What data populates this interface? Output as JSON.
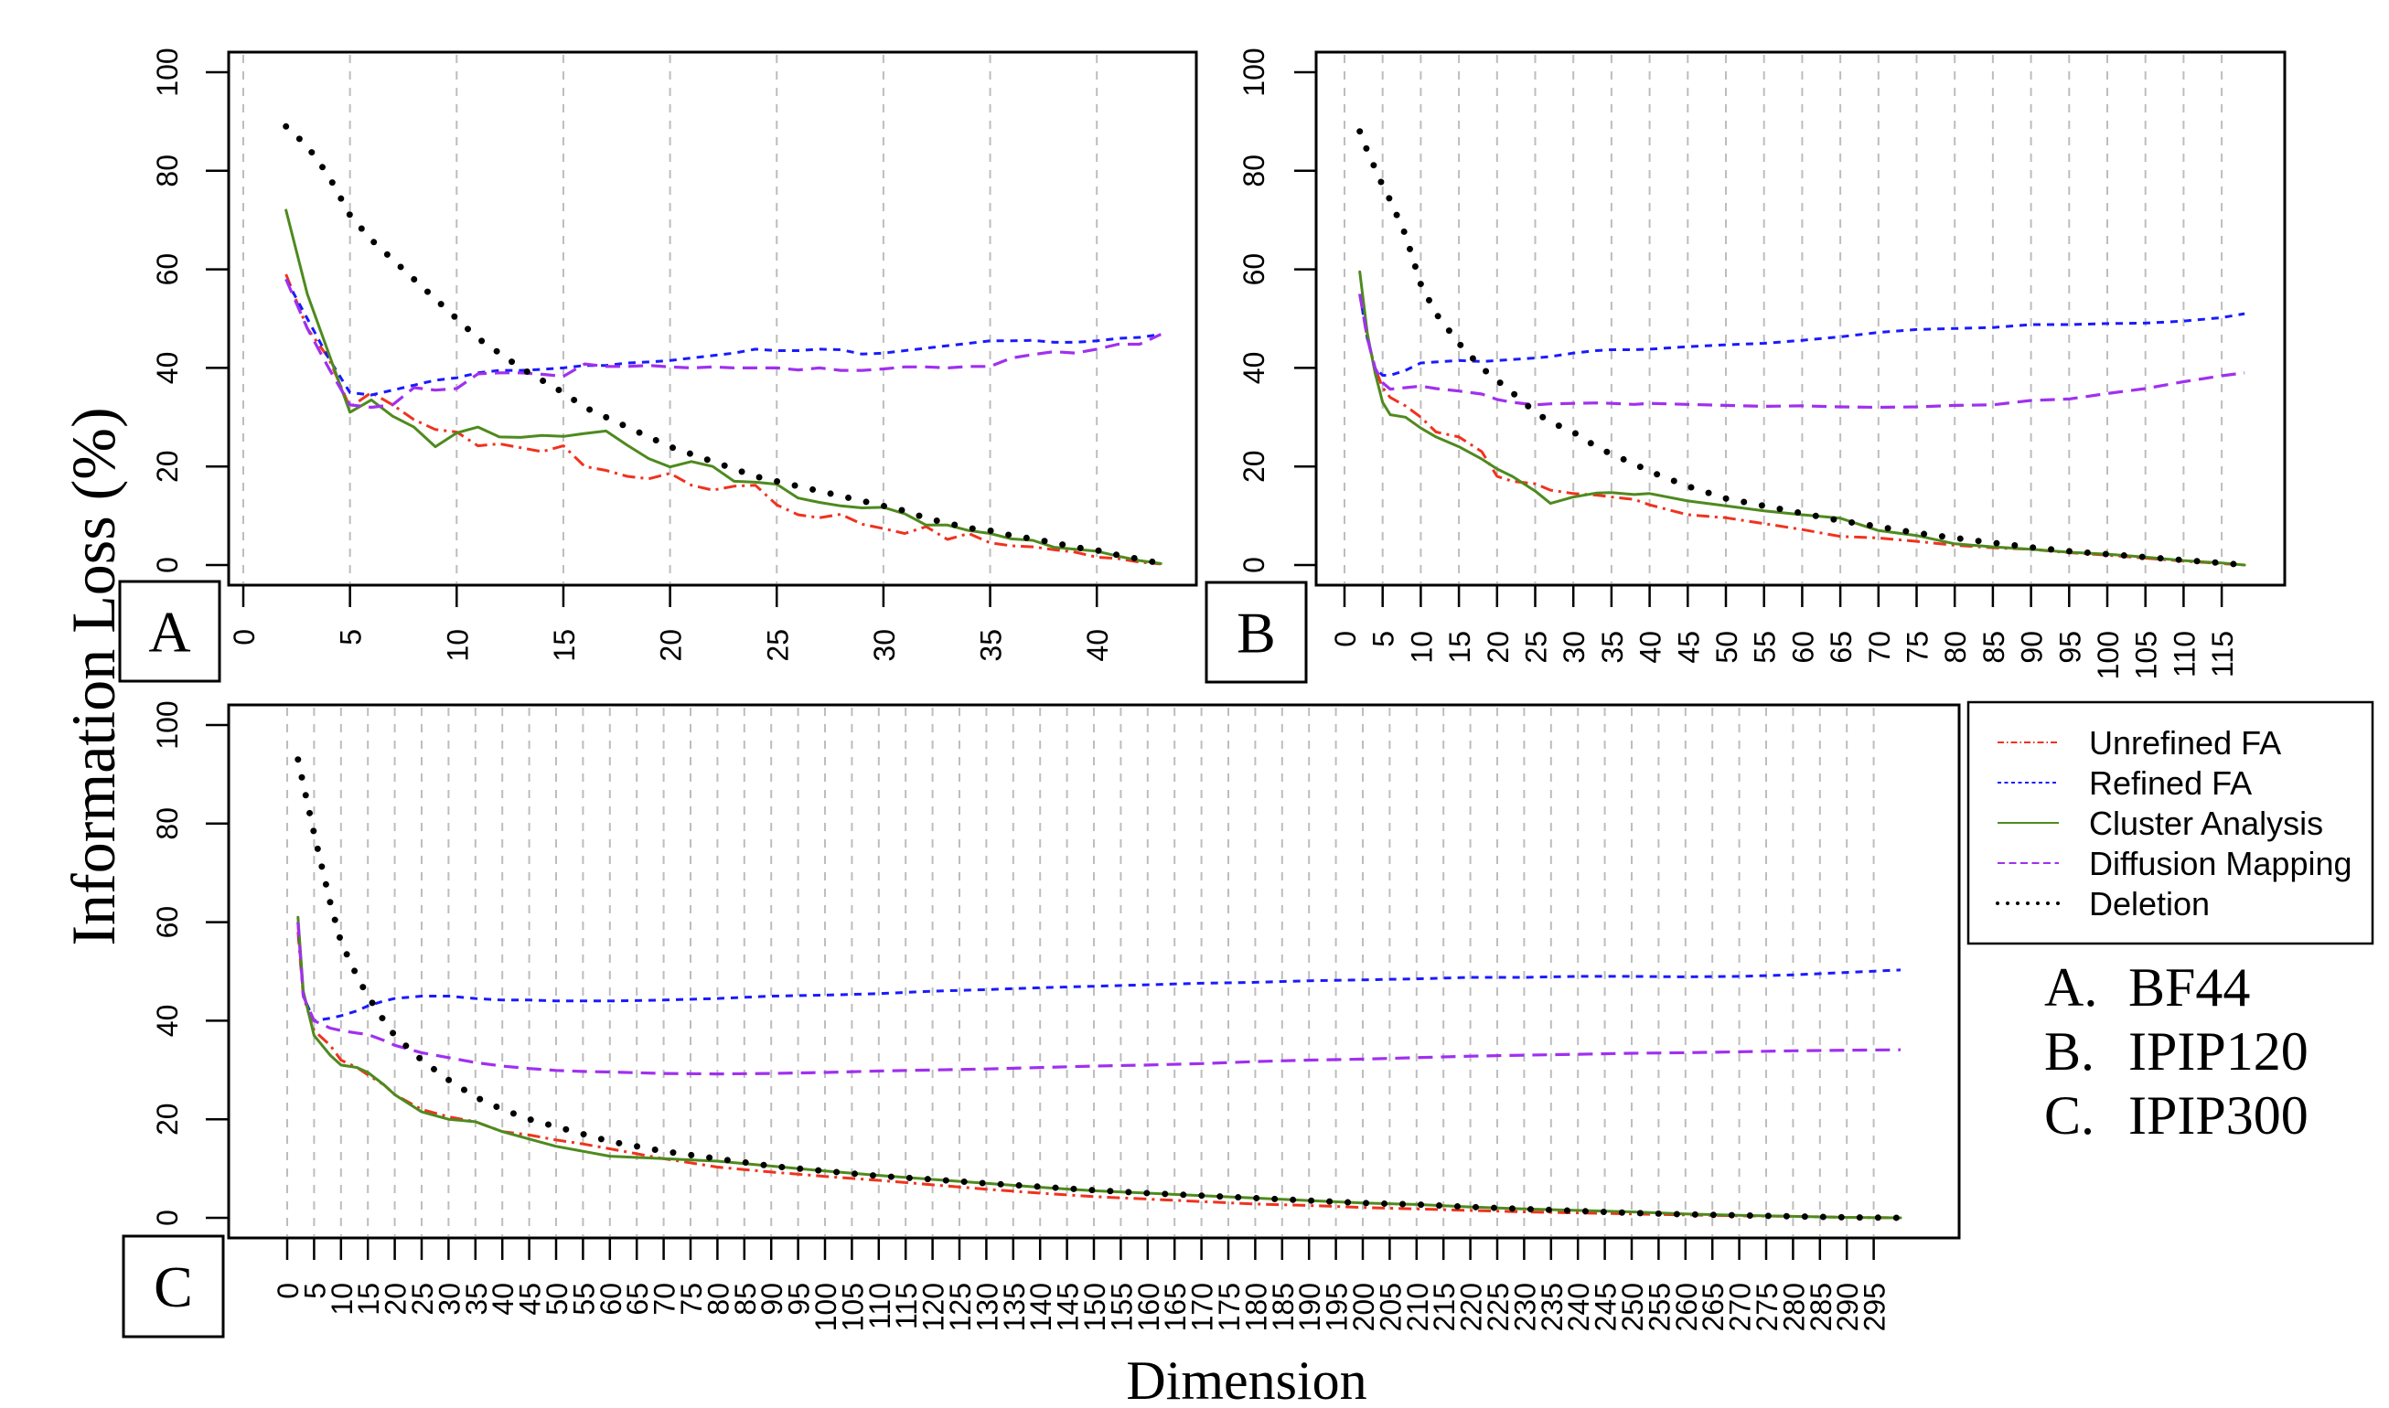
{
  "figure": {
    "ylabel": "Information Loss (%)",
    "xlabel": "Dimension",
    "legend": [
      {
        "name": "Unrefined FA",
        "color": "#f0321e",
        "style": "dot-dash"
      },
      {
        "name": "Refined FA",
        "color": "#1a1aff",
        "style": "short-dash"
      },
      {
        "name": "Cluster Analysis",
        "color": "#4e8a1e",
        "style": "solid"
      },
      {
        "name": "Diffusion Mapping",
        "color": "#a030f0",
        "style": "long-dash"
      },
      {
        "name": "Deletion",
        "color": "#000000",
        "style": "dotted"
      }
    ],
    "datasets": [
      {
        "letter": "A.",
        "name": "BF44"
      },
      {
        "letter": "B.",
        "name": "IPIP120"
      },
      {
        "letter": "C.",
        "name": "IPIP300"
      }
    ]
  },
  "chart_data": [
    {
      "type": "line",
      "panel": "A",
      "dataset": "BF44",
      "xlabel": "Dimension",
      "ylabel": "Information Loss (%)",
      "xlim": [
        0,
        43
      ],
      "ylim": [
        0,
        100
      ],
      "xticks": [
        0,
        5,
        10,
        15,
        20,
        25,
        30,
        35,
        40
      ],
      "yticks": [
        0,
        20,
        40,
        60,
        80,
        100
      ],
      "grid": "vertical dashed",
      "x": [
        2,
        3,
        4,
        5,
        6,
        7,
        8,
        9,
        10,
        11,
        12,
        13,
        14,
        15,
        16,
        17,
        18,
        19,
        20,
        21,
        22,
        23,
        24,
        25,
        26,
        27,
        28,
        29,
        30,
        31,
        32,
        33,
        34,
        35,
        36,
        37,
        38,
        39,
        40,
        41,
        42,
        43
      ],
      "series": [
        {
          "name": "Unrefined FA",
          "values": [
            59,
            48,
            42,
            32,
            35,
            32.5,
            29.5,
            27.5,
            27,
            24.2,
            24.6,
            23.8,
            23,
            24.2,
            20,
            19.2,
            18,
            17.5,
            18.6,
            16.2,
            15.2,
            16,
            16.2,
            12.2,
            10.2,
            9.6,
            10.3,
            8.3,
            7.4,
            6.4,
            7.8,
            5.2,
            6.4,
            4.5,
            3.9,
            3.7,
            3.1,
            2.6,
            1.6,
            1.3,
            0.6,
            0.2
          ]
        },
        {
          "name": "Refined FA",
          "values": [
            58,
            50,
            42,
            35,
            34.5,
            35.5,
            36.5,
            37.5,
            38,
            39,
            39.5,
            39.5,
            39.7,
            40,
            40.5,
            40.5,
            41,
            41.2,
            41.5,
            42,
            42.5,
            43,
            43.8,
            43.5,
            43.5,
            43.8,
            43.7,
            42.8,
            43,
            43.5,
            44,
            44.5,
            45,
            45.5,
            45.5,
            45.6,
            45.2,
            45.2,
            45.5,
            46,
            46.2,
            46.8
          ]
        },
        {
          "name": "Cluster Analysis",
          "values": [
            72,
            55,
            43,
            31,
            33.5,
            30.2,
            28,
            24,
            26.8,
            28,
            26,
            25.9,
            26.3,
            26.1,
            26.7,
            27.2,
            24.3,
            21.6,
            19.9,
            21,
            20,
            17,
            16.8,
            16.4,
            13.6,
            12.7,
            12,
            11.6,
            11.7,
            10.4,
            8.1,
            8.1,
            7,
            6.4,
            5.3,
            5,
            3.6,
            3.2,
            2.8,
            1.8,
            0.9,
            0.3
          ]
        },
        {
          "name": "Diffusion Mapping",
          "values": [
            58,
            48,
            40,
            32.5,
            32,
            32.5,
            36,
            35.5,
            35.8,
            38.8,
            39,
            39,
            38.7,
            38.3,
            40.8,
            40.3,
            40.3,
            40.5,
            40.2,
            40,
            40.2,
            40,
            40,
            40,
            39.6,
            40,
            39.5,
            39.5,
            39.8,
            40.2,
            40.2,
            40,
            40.3,
            40.3,
            42,
            42.7,
            43.3,
            43,
            43.8,
            44.8,
            44.8,
            46.8
          ]
        },
        {
          "name": "Deletion",
          "values": [
            89,
            85,
            79,
            71,
            66,
            62,
            58,
            54,
            50,
            46,
            43,
            40,
            37.5,
            35,
            32,
            30,
            28,
            26,
            24,
            22.5,
            21,
            19.5,
            18,
            17,
            16,
            15,
            14,
            13,
            12,
            11,
            9.5,
            8.5,
            7.5,
            7,
            6,
            5.3,
            4.5,
            3.6,
            3,
            2,
            1.2,
            0.3
          ]
        }
      ]
    },
    {
      "type": "line",
      "panel": "B",
      "dataset": "IPIP120",
      "xlabel": "Dimension",
      "ylabel": "Information Loss (%)",
      "xlim": [
        0,
        118
      ],
      "ylim": [
        0,
        100
      ],
      "xticks": [
        0,
        5,
        10,
        15,
        20,
        25,
        30,
        35,
        40,
        45,
        50,
        55,
        60,
        65,
        70,
        75,
        80,
        85,
        90,
        95,
        100,
        105,
        110,
        115
      ],
      "yticks": [
        0,
        20,
        40,
        60,
        80,
        100
      ],
      "grid": "vertical dashed",
      "x": [
        2,
        3,
        4,
        5,
        6,
        8,
        10,
        12,
        15,
        18,
        20,
        22,
        25,
        27,
        30,
        33,
        35,
        38,
        40,
        45,
        50,
        55,
        60,
        65,
        70,
        75,
        80,
        85,
        90,
        95,
        100,
        105,
        110,
        115,
        118
      ],
      "series": [
        {
          "name": "Unrefined FA",
          "values": [
            55,
            46,
            40,
            36,
            34,
            32.3,
            30,
            27,
            26,
            23,
            18,
            17,
            16.5,
            15.2,
            14.5,
            14.2,
            13.8,
            13.3,
            12.2,
            10.2,
            9.6,
            8.4,
            7.2,
            5.8,
            5.5,
            4.8,
            4,
            3.5,
            3.2,
            2.5,
            2,
            1.4,
            0.8,
            0.3,
            0
          ]
        },
        {
          "name": "Refined FA",
          "values": [
            55,
            46,
            40,
            38.5,
            38.5,
            39.5,
            41,
            41.2,
            41.5,
            41.3,
            41.5,
            41.7,
            42,
            42.3,
            43,
            43.5,
            43.7,
            43.7,
            43.8,
            44.3,
            44.7,
            45,
            45.6,
            46.3,
            47.2,
            47.8,
            48,
            48.2,
            48.8,
            48.8,
            49,
            49.1,
            49.5,
            50.2,
            51
          ]
        },
        {
          "name": "Cluster Analysis",
          "values": [
            59.5,
            47,
            39,
            33,
            30.5,
            30,
            27.8,
            26,
            24,
            21.5,
            19.5,
            18,
            15,
            12.5,
            13.8,
            14.6,
            14.7,
            14.3,
            14.5,
            13,
            12,
            11,
            10.2,
            9.5,
            7,
            6,
            4.3,
            3.7,
            3.2,
            2.6,
            2.2,
            1.6,
            0.9,
            0.4,
            0
          ]
        },
        {
          "name": "Diffusion Mapping",
          "values": [
            55,
            46,
            40,
            37,
            35.7,
            36,
            36.3,
            35.8,
            35.3,
            34.7,
            33.6,
            33,
            32.5,
            32.7,
            32.8,
            32.9,
            32.8,
            32.6,
            32.8,
            32.6,
            32.4,
            32.2,
            32.3,
            32.1,
            32,
            32.1,
            32.4,
            32.5,
            33.4,
            33.7,
            34.8,
            35.8,
            37.2,
            38.4,
            39
          ]
        },
        {
          "name": "Deletion",
          "values": [
            88,
            84,
            80.5,
            77,
            74,
            67,
            57,
            51,
            45,
            40,
            37.5,
            35,
            31,
            29,
            27,
            24,
            22.5,
            20.5,
            19,
            16,
            13.5,
            12,
            10.5,
            9,
            7.8,
            6.5,
            5.5,
            4.5,
            3.6,
            2.8,
            2.2,
            1.6,
            1,
            0.4,
            0
          ]
        }
      ]
    },
    {
      "type": "line",
      "panel": "C",
      "dataset": "IPIP300",
      "xlabel": "Dimension",
      "ylabel": "Information Loss (%)",
      "xlim": [
        0,
        300
      ],
      "ylim": [
        0,
        100
      ],
      "xticks": [
        0,
        5,
        10,
        15,
        20,
        25,
        30,
        35,
        40,
        45,
        50,
        55,
        60,
        65,
        70,
        75,
        80,
        85,
        90,
        95,
        100,
        105,
        110,
        115,
        120,
        125,
        130,
        135,
        140,
        145,
        150,
        155,
        160,
        165,
        170,
        175,
        180,
        185,
        190,
        195,
        200,
        205,
        210,
        215,
        220,
        225,
        230,
        235,
        240,
        245,
        250,
        255,
        260,
        265,
        270,
        275,
        280,
        285,
        290,
        295
      ],
      "yticks": [
        0,
        20,
        40,
        60,
        80,
        100
      ],
      "grid": "vertical dashed",
      "x": [
        2,
        3,
        5,
        8,
        10,
        13,
        15,
        18,
        20,
        25,
        30,
        35,
        40,
        45,
        50,
        55,
        60,
        70,
        80,
        90,
        100,
        110,
        120,
        130,
        140,
        150,
        160,
        170,
        180,
        190,
        200,
        210,
        220,
        230,
        240,
        250,
        260,
        270,
        280,
        290,
        300
      ],
      "series": [
        {
          "name": "Unrefined FA",
          "values": [
            58,
            45,
            38,
            35,
            32,
            30.5,
            29,
            27,
            25,
            22,
            20.5,
            19.5,
            17.5,
            16.8,
            15.8,
            15,
            14,
            12,
            10.3,
            9.3,
            8.4,
            7.6,
            6.7,
            5.8,
            5,
            4.3,
            3.8,
            3.3,
            2.8,
            2.5,
            2.1,
            1.8,
            1.5,
            1.2,
            1,
            0.8,
            0.6,
            0.4,
            0.3,
            0.1,
            0
          ]
        },
        {
          "name": "Refined FA",
          "values": [
            60,
            45,
            40,
            40.5,
            41,
            42,
            43,
            44,
            44.5,
            45,
            45,
            44.5,
            44.2,
            44.2,
            44,
            44,
            44,
            44.2,
            44.5,
            45,
            45.2,
            45.5,
            46,
            46.3,
            46.7,
            47,
            47.3,
            47.6,
            47.8,
            48.1,
            48.3,
            48.5,
            48.8,
            48.8,
            49,
            49,
            48.9,
            49,
            49.3,
            49.8,
            50.3
          ]
        },
        {
          "name": "Cluster Analysis",
          "values": [
            61,
            46,
            37,
            33,
            31,
            30.5,
            29.5,
            27,
            25,
            21.5,
            20,
            19.5,
            17.5,
            16,
            14.5,
            13.5,
            12.5,
            12,
            11.5,
            10.5,
            9.5,
            8.6,
            7.8,
            7,
            6.2,
            5.5,
            5,
            4.5,
            4,
            3.5,
            3,
            2.7,
            2.2,
            1.8,
            1.5,
            1.2,
            0.8,
            0.5,
            0.3,
            0.1,
            0
          ]
        },
        {
          "name": "Diffusion Mapping",
          "values": [
            60,
            45,
            40,
            38.5,
            38,
            37.5,
            37.2,
            36,
            35,
            33.5,
            32.5,
            31.5,
            30.8,
            30.3,
            29.9,
            29.7,
            29.6,
            29.3,
            29.2,
            29.3,
            29.5,
            29.8,
            30,
            30.2,
            30.5,
            30.8,
            31,
            31.3,
            31.7,
            32,
            32.2,
            32.5,
            32.8,
            33,
            33.2,
            33.4,
            33.5,
            33.7,
            33.9,
            34,
            34.1
          ]
        },
        {
          "name": "Deletion",
          "values": [
            93,
            88,
            78,
            64,
            56,
            49,
            45,
            40,
            37,
            32,
            28,
            24.5,
            22,
            20,
            18.5,
            17,
            15.5,
            13.5,
            12,
            10.5,
            9.5,
            8.5,
            7.8,
            7,
            6.3,
            5.6,
            5,
            4.5,
            4,
            3.5,
            3,
            2.7,
            2.2,
            1.8,
            1.4,
            1,
            0.7,
            0.5,
            0.3,
            0.1,
            0
          ]
        }
      ]
    }
  ]
}
